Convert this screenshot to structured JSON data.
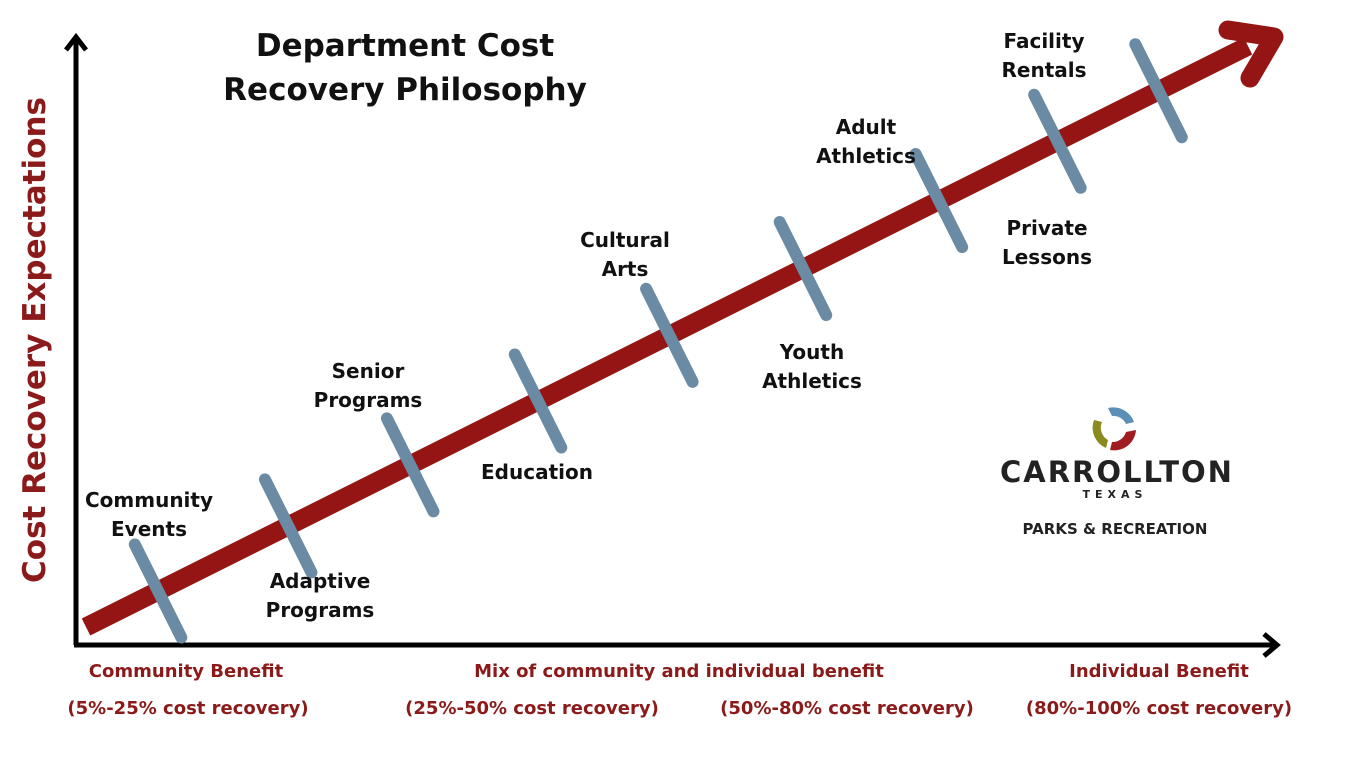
{
  "title": [
    "Department Cost",
    "Recovery Philosophy"
  ],
  "y_axis_label": "Cost Recovery Expectations",
  "programs": [
    {
      "lines": [
        "Community",
        "Events"
      ]
    },
    {
      "lines": [
        "Adaptive",
        "Programs"
      ]
    },
    {
      "lines": [
        "Senior",
        "Programs"
      ]
    },
    {
      "lines": [
        "Education"
      ]
    },
    {
      "lines": [
        "Cultural",
        "Arts"
      ]
    },
    {
      "lines": [
        "Youth",
        "Athletics"
      ]
    },
    {
      "lines": [
        "Adult",
        "Athletics"
      ]
    },
    {
      "lines": [
        "Private",
        "Lessons"
      ]
    },
    {
      "lines": [
        "Facility",
        "Rentals"
      ]
    }
  ],
  "benefit_labels": {
    "community": "Community Benefit",
    "mix": "Mix of community and individual benefit",
    "individual": "Individual Benefit"
  },
  "recovery_ranges": [
    "(5%-25% cost recovery)",
    "(25%-50% cost recovery)",
    "(50%-80% cost recovery)",
    "(80%-100% cost recovery)"
  ],
  "logo": {
    "name": "CARROLLTON",
    "state": "TEXAS",
    "department": "PARKS & RECREATION",
    "colors": {
      "blue": "#5b8fb5",
      "olive": "#8a8a1e",
      "red": "#a01b22"
    }
  },
  "colors": {
    "arrow": "#951414",
    "tick": "#6b8ba4",
    "axis": "#000000",
    "accent_text": "#8b1a1a"
  }
}
